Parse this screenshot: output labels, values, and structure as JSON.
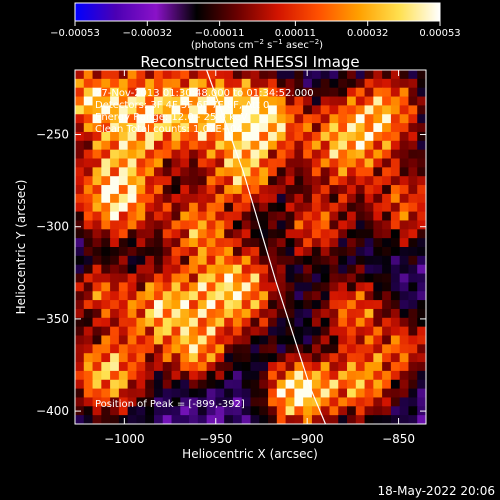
{
  "chart_data": {
    "type": "heatmap",
    "title": "Reconstructed RHESSI Image",
    "xlabel": "Heliocentric X (arcsec)",
    "ylabel": "Heliocentric Y (arcsec)",
    "xlim": [
      -1027,
      -835
    ],
    "ylim": [
      -407,
      -215
    ],
    "x_ticks": [
      -1000,
      -950,
      -900,
      -850
    ],
    "y_ticks": [
      -250,
      -300,
      -350,
      -400
    ],
    "x_tick_labels": [
      "−1000",
      "−950",
      "−900",
      "−850"
    ],
    "y_tick_labels": [
      "−250",
      "−300",
      "−350",
      "−400"
    ],
    "colorbar": {
      "range": [
        -0.00053,
        0.00053
      ],
      "ticks": [
        -0.00053,
        -0.00032,
        -0.00011,
        0.00011,
        0.00032,
        0.00053
      ],
      "tick_labels": [
        "−0.00053",
        "−0.00032",
        "−0.00011",
        "0.00011",
        "0.00032",
        "0.00053"
      ],
      "units_text": "(photons cm",
      "units_sup1": "−2",
      "units_mid": " s",
      "units_sup2": "−1",
      "units_mid2": " asec",
      "units_sup3": "−2",
      "units_end": ")",
      "colors": [
        "#0000ff",
        "#4b00b4",
        "#8a12c8",
        "#000000",
        "#6a0000",
        "#d21400",
        "#ff5000",
        "#ffa000",
        "#ffe050",
        "#ffffff"
      ]
    },
    "annotations": [
      "27-Nov-2013 01:30:48.000 to 01:34:52.000",
      "Detectors: 3F 4F 5F 6F 7F 8F, Att 0",
      "Energy Range: 12.0 - 25.0 keV",
      "Clean     Total counts: 1.07E+04"
    ],
    "peak_label": "Position of Peak = [-899,-392]",
    "limb_curve": [
      [
        -955,
        -215
      ],
      [
        -935,
        -270
      ],
      [
        -917,
        -330
      ],
      [
        -898,
        -388
      ],
      [
        -890,
        -407
      ]
    ],
    "grid": false
  },
  "footer": {
    "date": "18-May-2022 20:06"
  }
}
